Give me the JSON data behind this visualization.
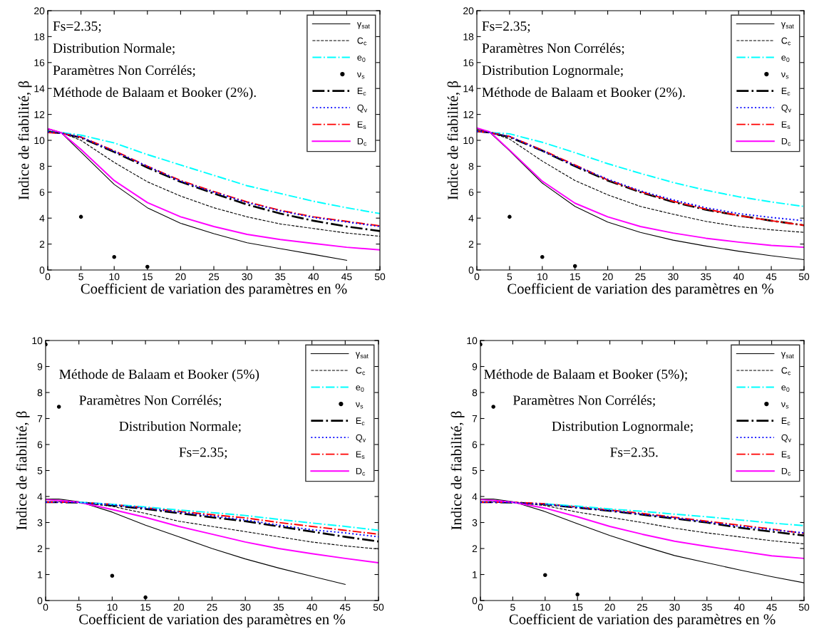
{
  "chart_data": [
    {
      "type": "line",
      "xlabel": "Coefficient de variation des paramètres en %",
      "ylabel": "Indice de fiabilité, β",
      "annotations": [
        "Fs=2.35;",
        "Distribution Normale;",
        "Paramètres Non Corrélés;",
        "Méthode de Balaam et Booker (2%)."
      ],
      "x": [
        0,
        2,
        5,
        10,
        15,
        20,
        25,
        30,
        35,
        40,
        45,
        50
      ],
      "xlim": [
        0,
        50
      ],
      "xticks": [
        0,
        5,
        10,
        15,
        20,
        25,
        30,
        35,
        40,
        45,
        50
      ],
      "ylim": [
        0,
        20
      ],
      "yticks": [
        0,
        2,
        4,
        6,
        8,
        10,
        12,
        14,
        16,
        18,
        20
      ],
      "grid": false,
      "legend": "top right",
      "series": [
        {
          "name": "γ$_{sat}$",
          "color": "#000000",
          "line_style": "solid",
          "values": [
            10.9,
            10.6,
            9.1,
            6.6,
            4.8,
            3.6,
            2.8,
            2.1,
            1.65,
            1.2,
            0.75,
            null
          ]
        },
        {
          "name": "C$_{c}$",
          "color": "#000000",
          "line_style": "dashed",
          "values": [
            10.8,
            10.6,
            10.0,
            8.3,
            6.8,
            5.7,
            4.8,
            4.1,
            3.55,
            3.2,
            2.85,
            2.6
          ]
        },
        {
          "name": "e$_{0}$",
          "color": "#00ffff",
          "line_style": "dashdot",
          "values": [
            10.7,
            10.6,
            10.4,
            9.8,
            8.9,
            8.1,
            7.3,
            6.5,
            5.9,
            5.3,
            4.8,
            4.35
          ]
        },
        {
          "name": "ν$_{s}$",
          "color": "#000000",
          "type": "scatter",
          "marker": "circle",
          "x": [
            5,
            10,
            15
          ],
          "values": [
            4.1,
            1.0,
            0.25
          ]
        },
        {
          "name": "E$_{c}$",
          "color": "#000000",
          "line_style": "dashdot",
          "values": [
            10.65,
            10.55,
            10.2,
            9.1,
            7.9,
            6.8,
            5.9,
            5.05,
            4.35,
            3.8,
            3.35,
            3.0
          ]
        },
        {
          "name": "Q$_{v}$",
          "color": "#0000ff",
          "line_style": "dotted",
          "values": [
            10.65,
            10.55,
            10.25,
            9.15,
            8.0,
            6.85,
            6.0,
            5.2,
            4.55,
            4.05,
            3.7,
            3.35
          ]
        },
        {
          "name": "E$_{s}$",
          "color": "#ff0000",
          "line_style": "dashdot",
          "values": [
            10.6,
            10.55,
            10.25,
            9.2,
            8.0,
            6.9,
            6.05,
            5.25,
            4.6,
            4.1,
            3.75,
            3.4
          ]
        },
        {
          "name": "D$_{c}$",
          "color": "#ff00ff",
          "line_style": "solid",
          "values": [
            10.9,
            10.6,
            9.3,
            6.9,
            5.2,
            4.1,
            3.35,
            2.75,
            2.35,
            2.05,
            1.75,
            1.55
          ]
        }
      ]
    },
    {
      "type": "line",
      "xlabel": "Coefficient de variation des paramètres en %",
      "ylabel": "Indice de fiabilité, β",
      "annotations": [
        "Fs=2.35;",
        "Paramètres Non Corrélés;",
        "Distribution Lognormale;",
        "Méthode de Balaam et Booker (2%)."
      ],
      "x": [
        0,
        2,
        5,
        10,
        15,
        20,
        25,
        30,
        35,
        40,
        45,
        50
      ],
      "xlim": [
        0,
        50
      ],
      "xticks": [
        0,
        5,
        10,
        15,
        20,
        25,
        30,
        35,
        40,
        45,
        50
      ],
      "ylim": [
        0,
        20
      ],
      "yticks": [
        0,
        2,
        4,
        6,
        8,
        10,
        12,
        14,
        16,
        18,
        20
      ],
      "grid": false,
      "legend": "top right",
      "series": [
        {
          "name": "γ$_{sat}$",
          "color": "#000000",
          "line_style": "solid",
          "values": [
            10.9,
            10.6,
            9.2,
            6.7,
            4.9,
            3.7,
            2.9,
            2.3,
            1.85,
            1.45,
            1.1,
            0.8
          ]
        },
        {
          "name": "C$_{c}$",
          "color": "#000000",
          "line_style": "dashed",
          "values": [
            10.8,
            10.6,
            10.1,
            8.4,
            6.9,
            5.8,
            4.9,
            4.3,
            3.75,
            3.35,
            3.1,
            2.9
          ]
        },
        {
          "name": "e$_{0}$",
          "color": "#00ffff",
          "line_style": "dashdot",
          "values": [
            10.7,
            10.6,
            10.5,
            9.85,
            9.05,
            8.2,
            7.45,
            6.75,
            6.15,
            5.65,
            5.25,
            4.9
          ]
        },
        {
          "name": "ν$_{s}$",
          "color": "#000000",
          "type": "scatter",
          "marker": "circle",
          "x": [
            5,
            10,
            15
          ],
          "values": [
            4.1,
            1.0,
            0.3
          ]
        },
        {
          "name": "E$_{c}$",
          "color": "#000000",
          "line_style": "dashdot",
          "values": [
            10.7,
            10.6,
            10.25,
            9.2,
            8.0,
            6.9,
            6.0,
            5.25,
            4.65,
            4.2,
            3.8,
            3.45
          ]
        },
        {
          "name": "Q$_{v}$",
          "color": "#0000ff",
          "line_style": "dotted",
          "values": [
            10.7,
            10.6,
            10.3,
            9.2,
            8.05,
            7.0,
            6.1,
            5.4,
            4.8,
            4.35,
            4.05,
            3.8
          ]
        },
        {
          "name": "E$_{s}$",
          "color": "#ff0000",
          "line_style": "dashdot",
          "values": [
            10.7,
            10.6,
            10.3,
            9.25,
            8.1,
            6.95,
            6.05,
            5.3,
            4.7,
            4.2,
            3.8,
            3.45
          ]
        },
        {
          "name": "D$_{c}$",
          "color": "#ff00ff",
          "line_style": "solid",
          "values": [
            10.95,
            10.65,
            9.25,
            6.85,
            5.15,
            4.1,
            3.35,
            2.85,
            2.45,
            2.15,
            1.9,
            1.75
          ]
        }
      ]
    },
    {
      "type": "line",
      "xlabel": "Coefficient de variation des paramètres en %",
      "ylabel": "Indice de fiabilité, β",
      "annotations": [
        "Méthode de Balaam et Booker (5%)",
        "Paramètres Non Corrélés;",
        "Distribution Normale;",
        "Fs=2.35;"
      ],
      "x": [
        0,
        2,
        5,
        10,
        15,
        20,
        25,
        30,
        35,
        40,
        45,
        50
      ],
      "xlim": [
        0,
        50
      ],
      "xticks": [
        0,
        5,
        10,
        15,
        20,
        25,
        30,
        35,
        40,
        45,
        50
      ],
      "ylim": [
        0,
        10
      ],
      "yticks": [
        0,
        1,
        2,
        3,
        4,
        5,
        6,
        7,
        8,
        9,
        10
      ],
      "grid": false,
      "legend": "top right",
      "series": [
        {
          "name": "γ$_{sat}$",
          "color": "#000000",
          "line_style": "solid",
          "values": [
            3.9,
            3.9,
            3.8,
            3.4,
            2.9,
            2.45,
            2.0,
            1.6,
            1.25,
            0.93,
            0.62,
            null
          ]
        },
        {
          "name": "C$_{c}$",
          "color": "#000000",
          "line_style": "dashed",
          "values": [
            3.8,
            3.8,
            3.78,
            3.62,
            3.35,
            3.05,
            2.85,
            2.65,
            2.45,
            2.25,
            2.1,
            1.98
          ]
        },
        {
          "name": "e$_{0}$",
          "color": "#00ffff",
          "line_style": "dashdot",
          "values": [
            null,
            null,
            3.78,
            3.7,
            3.6,
            3.48,
            3.38,
            3.27,
            3.12,
            2.98,
            2.85,
            2.7
          ]
        },
        {
          "name": "ν$_{s}$",
          "color": "#000000",
          "type": "scatter",
          "marker": "circle",
          "x": [
            0,
            2,
            10,
            15
          ],
          "values": [
            9.85,
            7.45,
            0.95,
            0.12
          ]
        },
        {
          "name": "E$_{c}$",
          "color": "#000000",
          "line_style": "dashdot",
          "values": [
            3.78,
            3.78,
            3.77,
            3.66,
            3.52,
            3.36,
            3.2,
            3.05,
            2.85,
            2.65,
            2.45,
            2.27
          ]
        },
        {
          "name": "Q$_{v}$",
          "color": "#0000ff",
          "line_style": "dotted",
          "values": [
            3.78,
            3.78,
            3.77,
            3.68,
            3.55,
            3.4,
            3.25,
            3.1,
            2.9,
            2.72,
            2.6,
            2.45
          ]
        },
        {
          "name": "E$_{s}$",
          "color": "#ff0000",
          "line_style": "dashdot",
          "values": [
            3.78,
            3.78,
            3.78,
            3.7,
            3.57,
            3.43,
            3.3,
            3.18,
            3.0,
            2.85,
            2.7,
            2.55
          ]
        },
        {
          "name": "D$_{c}$",
          "color": "#ff00ff",
          "line_style": "solid",
          "values": [
            3.88,
            3.85,
            3.78,
            3.5,
            3.2,
            2.85,
            2.55,
            2.25,
            2.0,
            1.8,
            1.62,
            1.45
          ]
        }
      ]
    },
    {
      "type": "line",
      "xlabel": "Coefficient de variation des paramètres en %",
      "ylabel": "Indice de fiabilité, β",
      "annotations": [
        "Méthode de Balaam et Booker (5%);",
        "Paramètres Non Corrélés;",
        "Distribution Lognormale;",
        "Fs=2.35."
      ],
      "x": [
        0,
        2,
        5,
        10,
        15,
        20,
        25,
        30,
        35,
        40,
        45,
        50
      ],
      "xlim": [
        0,
        50
      ],
      "xticks": [
        0,
        5,
        10,
        15,
        20,
        25,
        30,
        35,
        40,
        45,
        50
      ],
      "ylim": [
        0,
        10
      ],
      "yticks": [
        0,
        1,
        2,
        3,
        4,
        5,
        6,
        7,
        8,
        9,
        10
      ],
      "grid": false,
      "legend": "top right",
      "series": [
        {
          "name": "γ$_{sat}$",
          "color": "#000000",
          "line_style": "solid",
          "values": [
            3.9,
            3.9,
            3.8,
            3.42,
            2.95,
            2.5,
            2.1,
            1.73,
            1.45,
            1.18,
            0.92,
            0.68
          ]
        },
        {
          "name": "C$_{c}$",
          "color": "#000000",
          "line_style": "dashed",
          "values": [
            3.8,
            3.8,
            3.78,
            3.65,
            3.4,
            3.2,
            3.0,
            2.78,
            2.6,
            2.45,
            2.3,
            2.18
          ]
        },
        {
          "name": "e$_{0}$",
          "color": "#00ffff",
          "line_style": "dashdot",
          "values": [
            null,
            null,
            null,
            3.72,
            3.63,
            3.52,
            3.43,
            3.32,
            3.22,
            3.1,
            2.98,
            2.88
          ]
        },
        {
          "name": "ν$_{s}$",
          "color": "#000000",
          "type": "scatter",
          "marker": "circle",
          "x": [
            0,
            2,
            10,
            15
          ],
          "values": [
            9.85,
            7.45,
            0.98,
            0.23
          ]
        },
        {
          "name": "E$_{c}$",
          "color": "#000000",
          "line_style": "dashdot",
          "values": [
            3.78,
            3.78,
            3.77,
            3.7,
            3.57,
            3.45,
            3.3,
            3.15,
            3.0,
            2.8,
            2.65,
            2.5
          ]
        },
        {
          "name": "Q$_{v}$",
          "color": "#0000ff",
          "line_style": "dotted",
          "values": [
            3.78,
            3.78,
            3.77,
            3.7,
            3.58,
            3.46,
            3.32,
            3.18,
            3.02,
            2.85,
            2.72,
            2.6
          ]
        },
        {
          "name": "E$_{s}$",
          "color": "#ff0000",
          "line_style": "dashdot",
          "values": [
            3.78,
            3.78,
            3.78,
            3.72,
            3.6,
            3.48,
            3.35,
            3.2,
            3.05,
            2.9,
            2.75,
            2.58
          ]
        },
        {
          "name": "D$_{c}$",
          "color": "#ff00ff",
          "line_style": "solid",
          "values": [
            3.88,
            3.85,
            3.78,
            3.55,
            3.22,
            2.85,
            2.55,
            2.28,
            2.08,
            1.9,
            1.72,
            1.62
          ]
        }
      ]
    }
  ]
}
